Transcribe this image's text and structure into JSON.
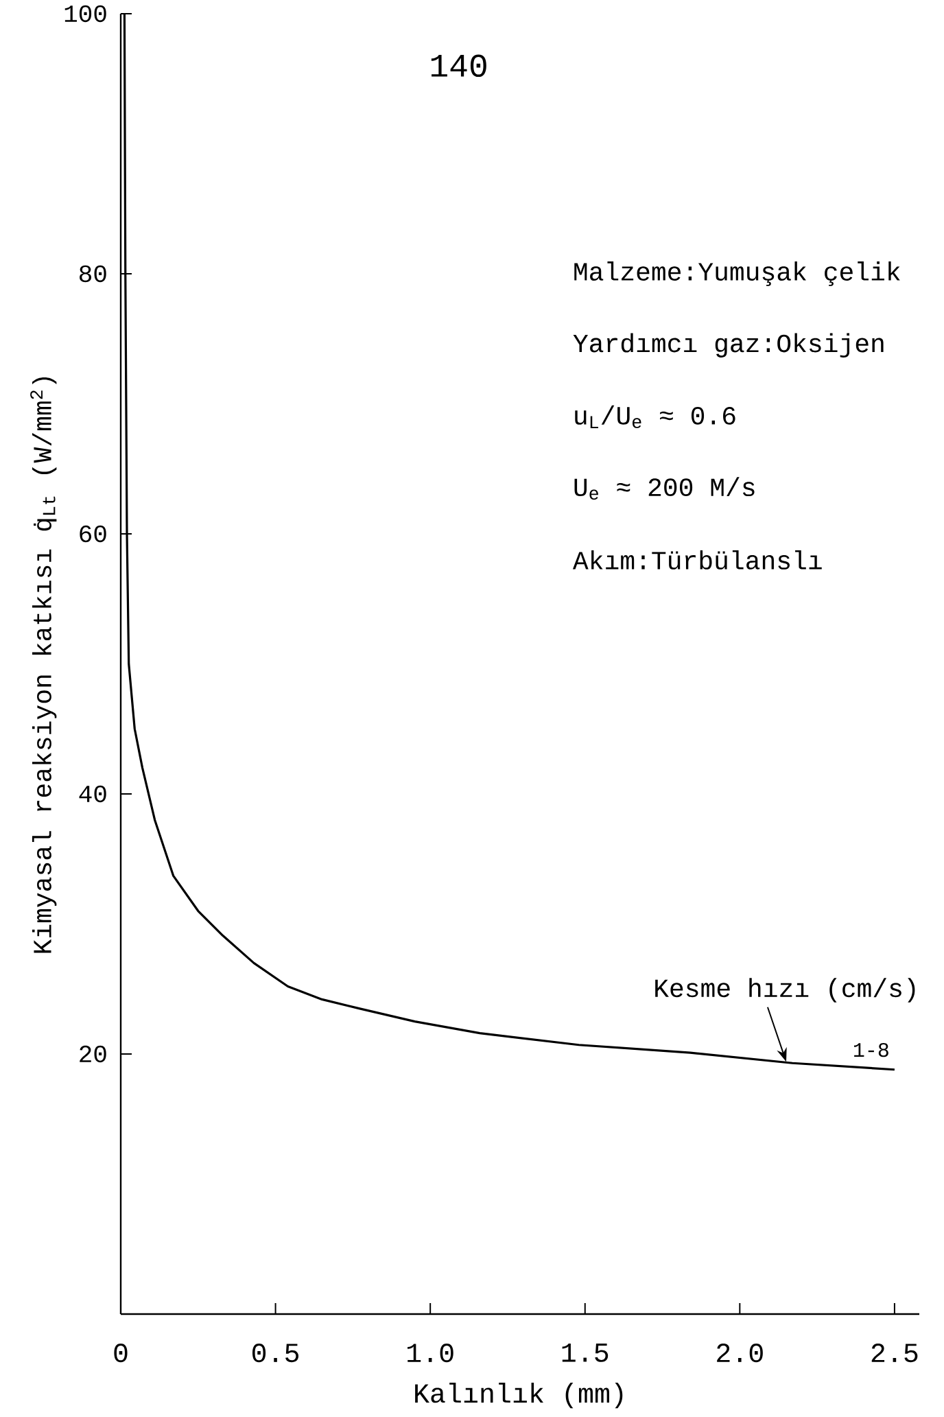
{
  "chart_data": {
    "type": "line",
    "xlabel": "Kalınlık (mm)",
    "ylabel": "Kimyasal reaksiyon katkısı q̇$_{Lt}$ (W/mm$^{2}$)",
    "x": [
      0.012,
      0.015,
      0.02,
      0.026,
      0.045,
      0.07,
      0.11,
      0.17,
      0.25,
      0.33,
      0.43,
      0.54,
      0.65,
      0.77,
      0.95,
      1.16,
      1.48,
      1.84,
      2.17,
      2.5
    ],
    "series": [
      {
        "color": "#000000",
        "values": [
          100,
          80,
          60,
          50,
          45,
          42,
          38,
          33.7,
          31,
          29.1,
          27,
          25.2,
          24.2,
          23.5,
          22.5,
          21.6,
          20.7,
          20.1,
          19.3,
          18.8
        ]
      }
    ],
    "xlim": [
      0,
      2.58
    ],
    "ylim": [
      0,
      100
    ],
    "xticks": [
      0,
      0.5,
      {
        "value": 1,
        "label": "1.0"
      },
      1.5,
      {
        "value": 2,
        "label": "2.0"
      },
      2.5
    ],
    "yticks": [
      20,
      40,
      60,
      80,
      100
    ],
    "marker": "none",
    "line_style": "solid",
    "grid": false,
    "annotations": [
      "140",
      "Malzeme:Yumuşak çelik",
      "Yardımcı gaz:Oksijen",
      "u$_{L}$/U$_{e}$ ≈ 0.6",
      "U$_{e}$ ≈ 200 M/s",
      "Akım:Türbülanslı",
      {
        "text": "Kesme hızı (cm/s)",
        "x": 2.15,
        "y": 19.4
      },
      {
        "text": "1-8",
        "x": 2.5,
        "y": 18.8
      }
    ]
  }
}
